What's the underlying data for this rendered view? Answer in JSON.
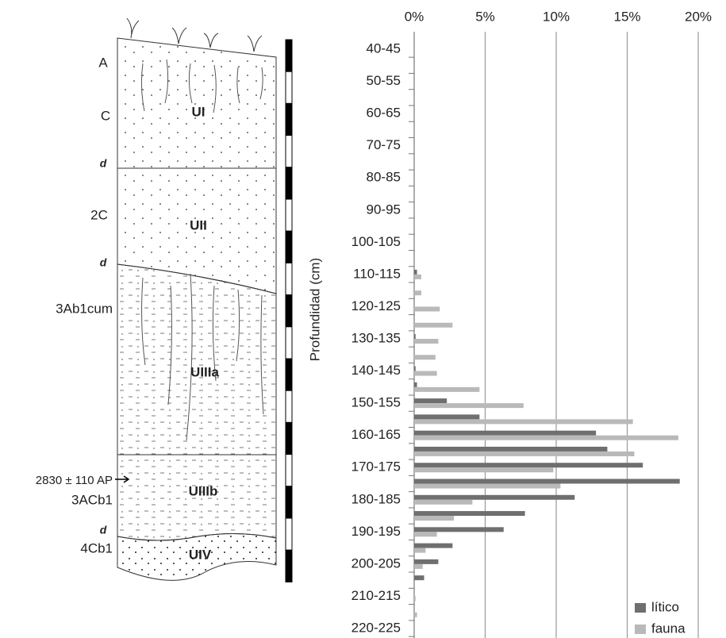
{
  "diagram": {
    "horizons": [
      "A",
      "C",
      "d",
      "2C",
      "d",
      "3Ab1cum",
      "3ACb1",
      "d",
      "4Cb1"
    ],
    "date": "2830 ± 110 AP",
    "units": [
      "UI",
      "UII",
      "UIIIa",
      "UIIIb",
      "UIV"
    ]
  },
  "chart_data": {
    "type": "hbar",
    "y_label": "Profundidad (cm)",
    "categories": [
      "40-45",
      null,
      "50-55",
      null,
      "60-65",
      null,
      "70-75",
      null,
      "80-85",
      null,
      "90-95",
      null,
      "100-105",
      null,
      "110-115",
      null,
      "120-125",
      null,
      "130-135",
      null,
      "140-145",
      null,
      "150-155",
      null,
      "160-165",
      null,
      "170-175",
      null,
      "180-185",
      null,
      "190-195",
      null,
      "200-205",
      null,
      "210-215",
      null,
      "220-225"
    ],
    "series": [
      {
        "name": "lítico",
        "color": "#6f6f6f",
        "values": [
          0,
          0,
          0,
          0,
          0,
          0,
          0,
          0,
          0,
          0,
          0,
          0,
          0,
          0,
          0.2,
          0,
          0,
          0,
          0.1,
          0,
          0.1,
          0.2,
          2.3,
          4.6,
          12.8,
          13.6,
          16.1,
          18.7,
          11.3,
          7.8,
          6.3,
          2.7,
          1.7,
          0.7,
          0,
          0,
          0
        ]
      },
      {
        "name": "fauna",
        "color": "#b9b9b9",
        "values": [
          0,
          0,
          0,
          0,
          0,
          0,
          0,
          0,
          0,
          0,
          0,
          0,
          0,
          0,
          0.5,
          0.5,
          1.8,
          2.7,
          1.7,
          1.5,
          1.6,
          4.6,
          7.7,
          15.4,
          18.6,
          15.5,
          9.8,
          10.3,
          4.1,
          2.8,
          1.6,
          0.8,
          0.6,
          0,
          0.1,
          0.2,
          0
        ]
      }
    ],
    "xlim": [
      0,
      20
    ],
    "xticks": [
      {
        "value": 0,
        "label": "0%"
      },
      {
        "value": 5,
        "label": "5%"
      },
      {
        "value": 10,
        "label": "10%"
      },
      {
        "value": 15,
        "label": "15%"
      },
      {
        "value": 20,
        "label": "20%"
      }
    ],
    "grid": true,
    "legend": "lower right"
  }
}
